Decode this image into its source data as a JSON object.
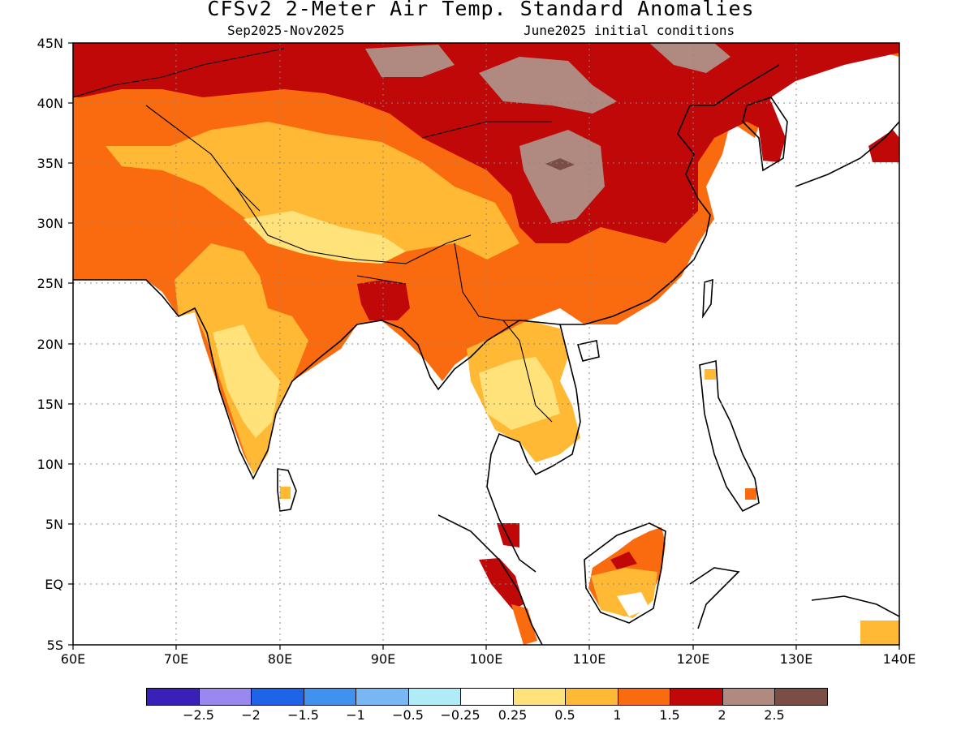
{
  "title": "CFSv2 2-Meter Air Temp. Standard Anomalies",
  "subtitle_left": "Sep2025-Nov2025",
  "subtitle_right": "June2025 initial conditions",
  "lat_labels": [
    "45N",
    "40N",
    "35N",
    "30N",
    "25N",
    "20N",
    "15N",
    "10N",
    "5N",
    "EQ",
    "5S"
  ],
  "lon_labels": [
    "60E",
    "70E",
    "80E",
    "90E",
    "100E",
    "110E",
    "120E",
    "130E",
    "140E"
  ],
  "colorbar": {
    "colors": [
      "#3a1fb8",
      "#9a88f0",
      "#1e64e8",
      "#3f92ee",
      "#78b6f4",
      "#b0ecf8",
      "#ffffff",
      "#ffe27a",
      "#ffb935",
      "#fa6a0e",
      "#c00808",
      "#b08a80",
      "#7a4e44"
    ],
    "labels": [
      "-2.5",
      "-2",
      "-1.5",
      "-1",
      "-0.5",
      "-0.25",
      "0.25",
      "0.5",
      "1",
      "1.5",
      "2",
      "2.5"
    ]
  },
  "map": {
    "region": "South and East Asia",
    "lon_range": [
      60,
      140
    ],
    "lat_range": [
      -5,
      45
    ],
    "grid": "dotted",
    "shading_colors": {
      "0.25-0.5": "#ffe27a",
      "0.5-1": "#ffb935",
      "1-1.5": "#fa6a0e",
      "1.5-2": "#c00808",
      "2-2.5": "#b08a80",
      "above-2.5": "#7a4e44"
    }
  }
}
